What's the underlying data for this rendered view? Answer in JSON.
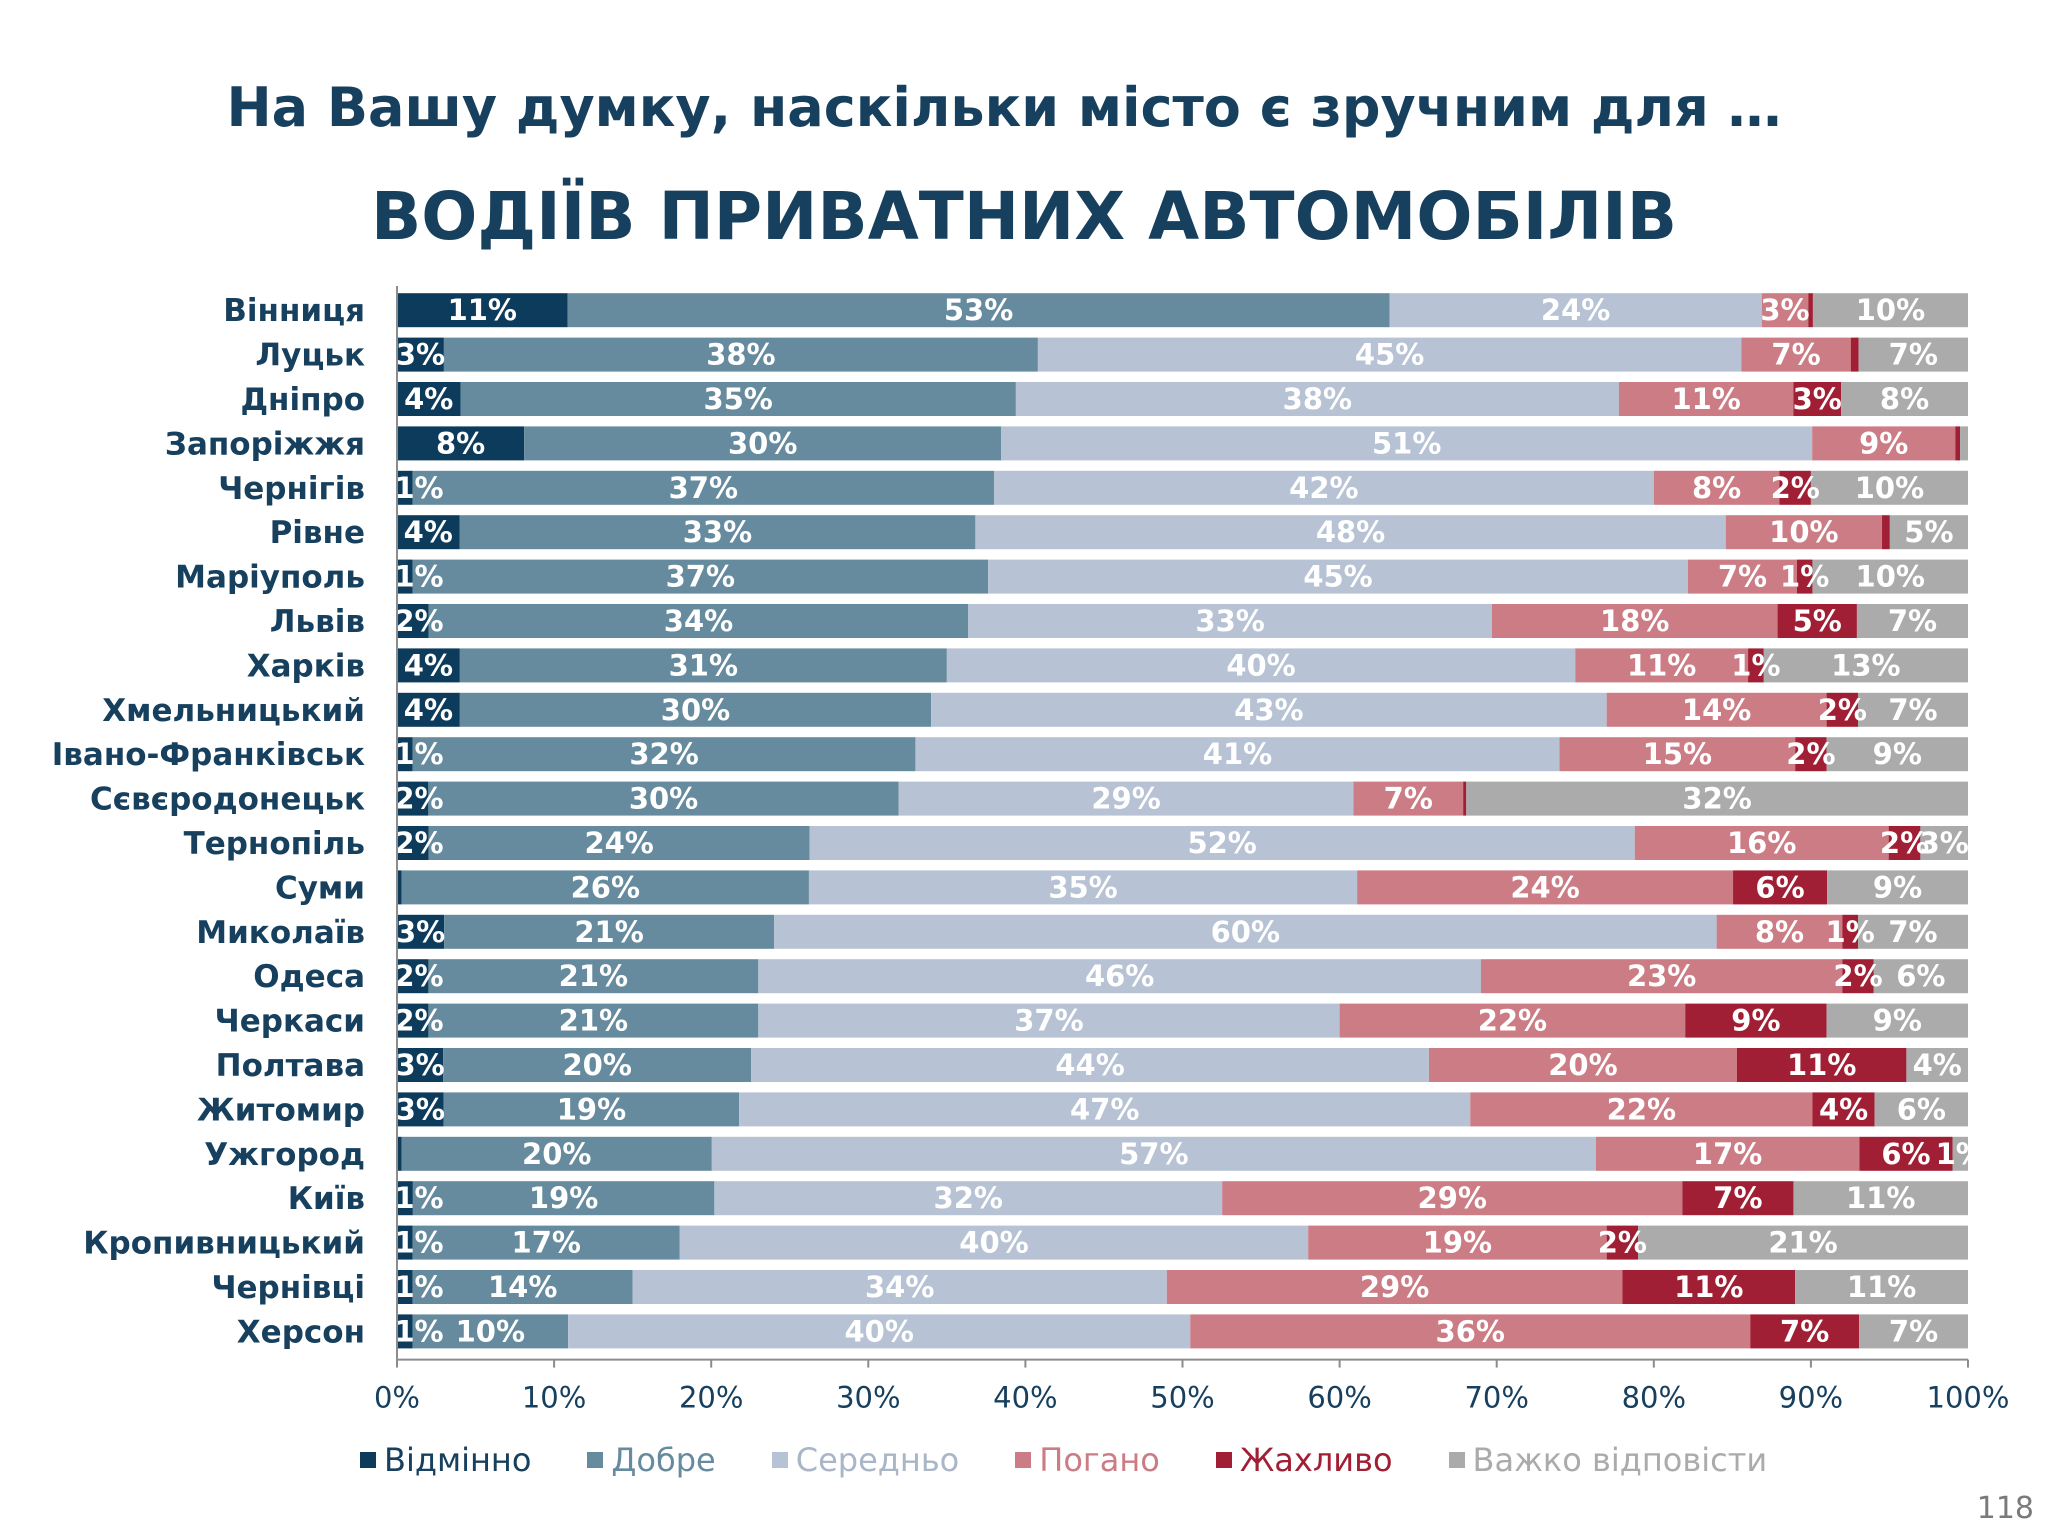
{
  "page": {
    "subtitle": "На Вашу думку, наскільки місто є зручним для …",
    "title": "ВОДІЇВ ПРИВАТНИХ АВТОМОБІЛІВ",
    "page_number": "118"
  },
  "chart_data": {
    "type": "bar",
    "orientation": "horizontal",
    "stacked": true,
    "percent_stacked": true,
    "title": "ВОДІЇВ ПРИВАТНИХ АВТОМОБІЛІВ",
    "subtitle": "На Вашу думку, наскільки місто є зручним для …",
    "xlabel": "",
    "ylabel": "",
    "xlim": [
      0,
      100
    ],
    "x_ticks": [
      "0%",
      "10%",
      "20%",
      "30%",
      "40%",
      "50%",
      "60%",
      "70%",
      "80%",
      "90%",
      "100%"
    ],
    "grid": false,
    "legend_position": "bottom",
    "categories": [
      "Вінниця",
      "Луцьк",
      "Дніпро",
      "Запоріжжя",
      "Чернігів",
      "Рівне",
      "Маріуполь",
      "Львів",
      "Харків",
      "Хмельницький",
      "Івано-Франківськ",
      "Сєвєродонецьк",
      "Тернопіль",
      "Суми",
      "Миколаїв",
      "Одеса",
      "Черкаси",
      "Полтава",
      "Житомир",
      "Ужгород",
      "Київ",
      "Кропивницький",
      "Чернівці",
      "Херсон"
    ],
    "series": [
      {
        "name": "Відмінно",
        "color": "#0d3b5c",
        "values": [
          11,
          3,
          4,
          8,
          1,
          4,
          1,
          2,
          4,
          4,
          1,
          2,
          2,
          0.3,
          3,
          2,
          2,
          3,
          3,
          0.3,
          1,
          1,
          1,
          1
        ]
      },
      {
        "name": "Добре",
        "color": "#678b9e",
        "values": [
          53,
          38,
          35,
          30,
          37,
          33,
          37,
          34,
          31,
          30,
          32,
          30,
          24,
          26,
          21,
          21,
          21,
          20,
          19,
          20,
          19,
          17,
          14,
          10
        ]
      },
      {
        "name": "Середньо",
        "color": "#b7c3d4",
        "values": [
          24,
          45,
          38,
          51,
          42,
          48,
          45,
          33,
          40,
          43,
          41,
          29,
          52,
          35,
          60,
          46,
          37,
          44,
          47,
          57,
          32,
          40,
          34,
          40
        ]
      },
      {
        "name": "Погано",
        "color": "#cc7c85",
        "values": [
          3,
          7,
          11,
          9,
          8,
          10,
          7,
          18,
          11,
          14,
          15,
          7,
          16,
          24,
          8,
          23,
          22,
          20,
          22,
          17,
          29,
          19,
          29,
          36
        ]
      },
      {
        "name": "Жахливо",
        "color": "#a11f34",
        "values": [
          0.3,
          0.5,
          3,
          0.3,
          2,
          0.5,
          1,
          5,
          1,
          2,
          2,
          0.2,
          2,
          6,
          1,
          2,
          9,
          11,
          4,
          6,
          7,
          2,
          11,
          7
        ]
      },
      {
        "name": "Важко відповісти",
        "color": "#ababab",
        "values": [
          10,
          7,
          8,
          0.5,
          10,
          5,
          10,
          7,
          13,
          7,
          9,
          32,
          3,
          9,
          7,
          6,
          9,
          4,
          6,
          1,
          11,
          21,
          11,
          7
        ]
      }
    ],
    "data_labels": [
      [
        "11%",
        "53%",
        "24%",
        "3%",
        "",
        "10%"
      ],
      [
        "3%",
        "38%",
        "45%",
        "7%",
        "",
        "7%"
      ],
      [
        "4%",
        "35%",
        "38%",
        "11%",
        "3%",
        "8%"
      ],
      [
        "8%",
        "30%",
        "51%",
        "9%",
        "",
        ""
      ],
      [
        "1%",
        "37%",
        "42%",
        "8%",
        "2%",
        "10%"
      ],
      [
        "4%",
        "33%",
        "48%",
        "10%",
        "",
        "5%"
      ],
      [
        "1%",
        "37%",
        "45%",
        "7%",
        "1%",
        "10%"
      ],
      [
        "2%",
        "34%",
        "33%",
        "18%",
        "5%",
        "7%"
      ],
      [
        "4%",
        "31%",
        "40%",
        "11%",
        "1%",
        "13%"
      ],
      [
        "4%",
        "30%",
        "43%",
        "14%",
        "2%",
        "7%"
      ],
      [
        "1%",
        "32%",
        "41%",
        "15%",
        "2%",
        "9%"
      ],
      [
        "2%",
        "30%",
        "29%",
        "7%",
        "",
        "32%"
      ],
      [
        "2%",
        "24%",
        "52%",
        "16%",
        "2%",
        "3%"
      ],
      [
        "",
        "26%",
        "35%",
        "24%",
        "6%",
        "9%"
      ],
      [
        "3%",
        "21%",
        "60%",
        "8%",
        "1%",
        "7%"
      ],
      [
        "2%",
        "21%",
        "46%",
        "23%",
        "2%",
        "6%"
      ],
      [
        "2%",
        "21%",
        "37%",
        "22%",
        "9%",
        "9%"
      ],
      [
        "3%",
        "20%",
        "44%",
        "20%",
        "11%",
        "4%"
      ],
      [
        "3%",
        "19%",
        "47%",
        "22%",
        "4%",
        "6%"
      ],
      [
        "",
        "20%",
        "57%",
        "17%",
        "6%",
        "1%"
      ],
      [
        "1%",
        "19%",
        "32%",
        "29%",
        "7%",
        "11%"
      ],
      [
        "1%",
        "17%",
        "40%",
        "19%",
        "2%",
        "21%"
      ],
      [
        "1%",
        "14%",
        "34%",
        "29%",
        "11%",
        "11%"
      ],
      [
        "1%",
        "10%",
        "40%",
        "36%",
        "7%",
        "7%"
      ]
    ]
  }
}
